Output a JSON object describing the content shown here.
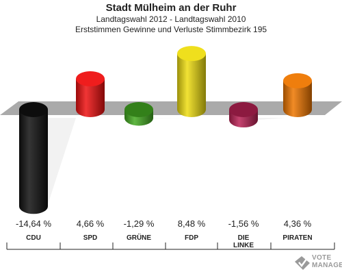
{
  "titles": {
    "line1": "Stadt Mülheim an der Ruhr",
    "line2": "Landtagswahl 2012 - Landtagswahl 2010",
    "line3": "Erststimmen Gewinne und Verluste Stimmbezirk 195"
  },
  "logo": {
    "line1": "VOTE",
    "line2": "MANAGER"
  },
  "chart_data": {
    "type": "bar",
    "title": "Stadt Mülheim an der Ruhr",
    "subtitle": "Landtagswahl 2012 - Landtagswahl 2010 / Erststimmen Gewinne und Verluste Stimmbezirk 195",
    "categories": [
      "CDU",
      "SPD",
      "GRÜNE",
      "FDP",
      "DIE LINKE",
      "PIRATEN"
    ],
    "category_lines": [
      [
        "CDU"
      ],
      [
        "SPD"
      ],
      [
        "GRÜNE"
      ],
      [
        "FDP"
      ],
      [
        "DIE",
        "LINKE"
      ],
      [
        "PIRATEN"
      ]
    ],
    "values": [
      -14.64,
      4.66,
      -1.29,
      8.48,
      -1.56,
      4.36
    ],
    "value_labels": [
      "-14,64 %",
      "4,66 %",
      "-1,29 %",
      "8,48 %",
      "-1,56 %",
      "4,36 %"
    ],
    "colors": [
      "#111111",
      "#ee1111",
      "#44aa22",
      "#eedd11",
      "#bb2255",
      "#ee7700"
    ],
    "ylim": [
      -15,
      9
    ],
    "grid": false,
    "legend": "none",
    "style": "3d-cylinder"
  }
}
